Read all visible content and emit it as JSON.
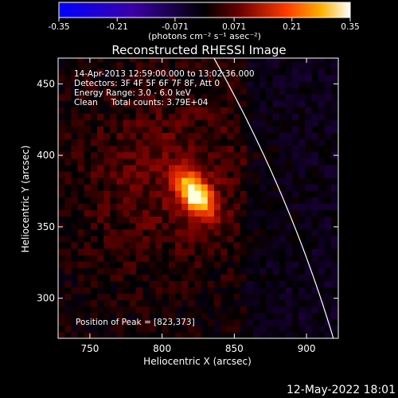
{
  "colorbar": {
    "ticks": [
      "-0.35",
      "-0.21",
      "-0.071",
      "0.071",
      "0.21",
      "0.35"
    ],
    "values": [
      -0.35,
      -0.21,
      -0.071,
      0.071,
      0.21,
      0.35
    ],
    "unit_label": "(photons cm⁻² s⁻¹ asec⁻²)",
    "colors": [
      "#0000ff",
      "#3b00b0",
      "#000000",
      "#6a0000",
      "#ff6a00",
      "#ffff80",
      "#ffffff"
    ]
  },
  "chart_data": {
    "type": "heatmap",
    "title": "Reconstructed RHESSI Image",
    "xlabel": "Heliocentric X (arcsec)",
    "ylabel": "Heliocentric Y (arcsec)",
    "xlim": [
      728,
      922
    ],
    "ylim": [
      272,
      468
    ],
    "xticks": [
      750,
      800,
      850,
      900
    ],
    "yticks": [
      300,
      350,
      400,
      450
    ],
    "annotations": [
      "14-Apr-2013 12:59:00.000 to 13:02:36.000",
      "Detectors: 3F 4F 5F 6F 7F 8F, Att 0",
      "Energy Range: 3.0 - 6.0 keV",
      "Clean     Total counts: 3.79E+04"
    ],
    "peak_label": "Position of Peak = [823,373]",
    "peak": {
      "x": 823,
      "y": 373,
      "value": 0.35
    },
    "limb_line_color": "#ffffff"
  },
  "footer": {
    "timestamp": "12-May-2022 18:01"
  }
}
